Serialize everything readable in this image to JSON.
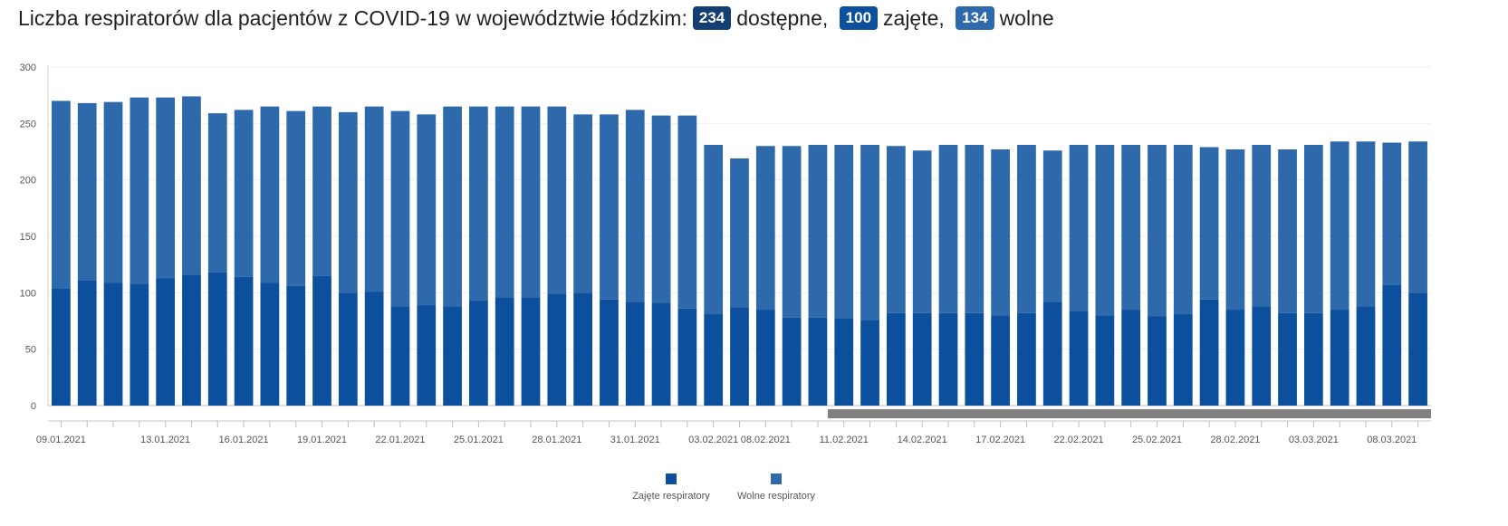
{
  "headline": {
    "prefix": "Liczba respiratorów dla pacjentów z COVID-19 w województwie łódzkim:",
    "available_value": "234",
    "available_label": "dostępne,",
    "occupied_value": "100",
    "occupied_label": "zajęte,",
    "free_value": "134",
    "free_label": "wolne"
  },
  "colors": {
    "occupied": "#0b4f9d",
    "free": "#2e6aab",
    "badge_total": "#123e72",
    "scrollbar": "#7f7f7f"
  },
  "chart_data": {
    "type": "bar",
    "stacked": true,
    "categories": [
      "09.01.2021",
      "10.01.2021",
      "11.01.2021",
      "12.01.2021",
      "13.01.2021",
      "14.01.2021",
      "15.01.2021",
      "16.01.2021",
      "17.01.2021",
      "18.01.2021",
      "19.01.2021",
      "20.01.2021",
      "21.01.2021",
      "22.01.2021",
      "23.01.2021",
      "24.01.2021",
      "25.01.2021",
      "26.01.2021",
      "27.01.2021",
      "28.01.2021",
      "29.01.2021",
      "30.01.2021",
      "31.01.2021",
      "01.02.2021",
      "02.02.2021",
      "03.02.2021",
      "04.02.2021",
      "08.02.2021",
      "09.02.2021",
      "10.02.2021",
      "11.02.2021",
      "12.02.2021",
      "13.02.2021",
      "14.02.2021",
      "15.02.2021",
      "16.02.2021",
      "17.02.2021",
      "18.02.2021",
      "19.02.2021",
      "22.02.2021",
      "23.02.2021",
      "24.02.2021",
      "25.02.2021",
      "26.02.2021",
      "27.02.2021",
      "28.02.2021",
      "01.03.2021",
      "02.03.2021",
      "03.03.2021",
      "04.03.2021",
      "05.03.2021",
      "08.03.2021",
      "09.03.2021"
    ],
    "tick_labels": [
      "09.01.2021",
      "13.01.2021",
      "16.01.2021",
      "19.01.2021",
      "22.01.2021",
      "25.01.2021",
      "28.01.2021",
      "31.01.2021",
      "03.02.2021",
      "08.02.2021",
      "11.02.2021",
      "14.02.2021",
      "17.02.2021",
      "22.02.2021",
      "25.02.2021",
      "28.02.2021",
      "03.03.2021",
      "08.03.2021"
    ],
    "series": [
      {
        "name": "Zajęte respiratory",
        "values": [
          104,
          111,
          109,
          108,
          113,
          116,
          118,
          114,
          109,
          106,
          115,
          100,
          101,
          88,
          89,
          88,
          93,
          96,
          96,
          99,
          100,
          94,
          92,
          91,
          86,
          81,
          87,
          85,
          78,
          78,
          77,
          76,
          82,
          82,
          82,
          82,
          80,
          82,
          92,
          84,
          80,
          85,
          79,
          81,
          94,
          85,
          88,
          82,
          82,
          85,
          88,
          107,
          100
        ]
      },
      {
        "name": "Wolne respiratory",
        "values": [
          166,
          157,
          160,
          165,
          160,
          158,
          141,
          148,
          156,
          155,
          150,
          160,
          164,
          173,
          169,
          177,
          172,
          169,
          169,
          166,
          158,
          164,
          170,
          166,
          171,
          150,
          132,
          145,
          152,
          153,
          154,
          155,
          148,
          144,
          149,
          149,
          147,
          149,
          134,
          147,
          151,
          146,
          152,
          150,
          135,
          142,
          143,
          145,
          149,
          149,
          146,
          126,
          134
        ]
      }
    ],
    "ylim": [
      0,
      300
    ],
    "yticks": [
      0,
      50,
      100,
      150,
      200,
      250,
      300
    ],
    "grid": true,
    "legend_position": "bottom-center"
  }
}
